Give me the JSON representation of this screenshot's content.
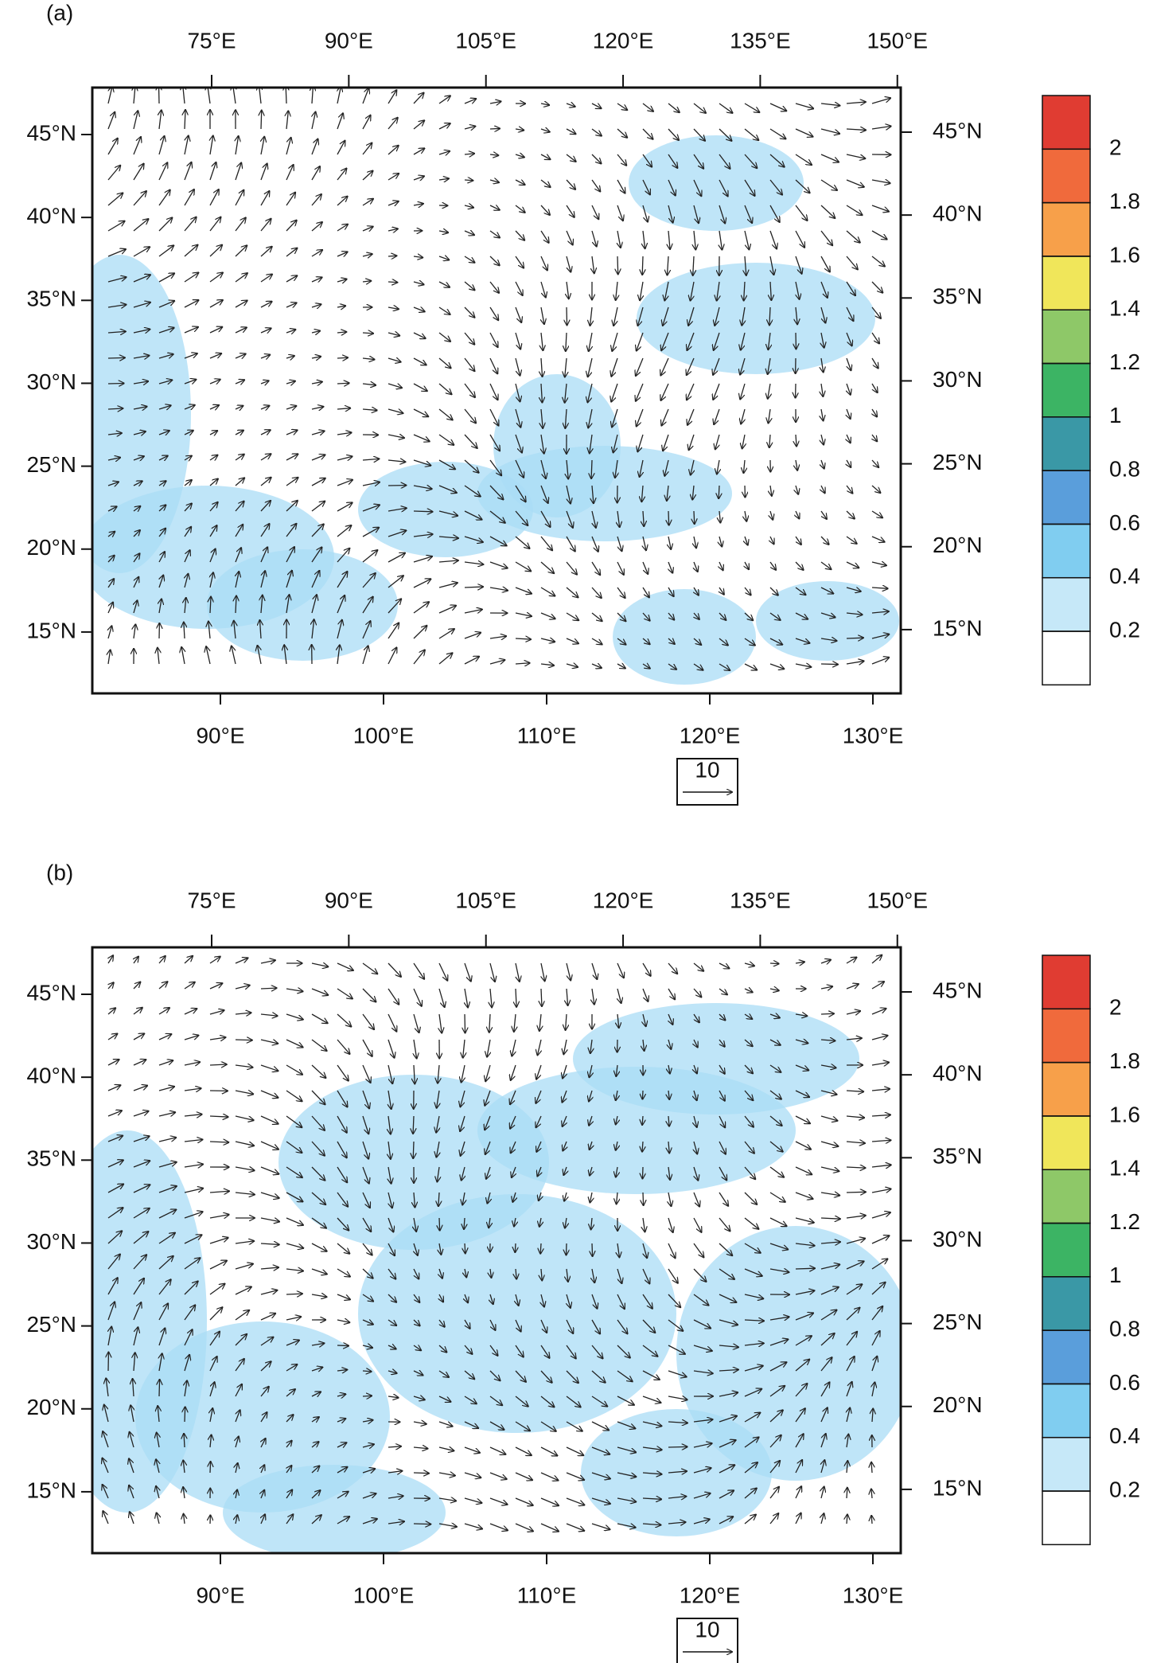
{
  "panels": [
    {
      "label": "(a)",
      "top_lon_ticks": [
        {
          "value": 75,
          "label": "75°E"
        },
        {
          "value": 90,
          "label": "90°E"
        },
        {
          "value": 105,
          "label": "105°E"
        },
        {
          "value": 120,
          "label": "120°E"
        },
        {
          "value": 135,
          "label": "135°E"
        },
        {
          "value": 150,
          "label": "150°E"
        }
      ],
      "bottom_lon_ticks": [
        {
          "value": 90,
          "label": "90°E"
        },
        {
          "value": 100,
          "label": "100°E"
        },
        {
          "value": 110,
          "label": "110°E"
        },
        {
          "value": 120,
          "label": "120°E"
        },
        {
          "value": 130,
          "label": "130°E"
        }
      ],
      "left_lat_ticks": [
        {
          "value": 45,
          "label": "45°N"
        },
        {
          "value": 40,
          "label": "40°N"
        },
        {
          "value": 35,
          "label": "35°N"
        },
        {
          "value": 30,
          "label": "30°N"
        },
        {
          "value": 25,
          "label": "25°N"
        },
        {
          "value": 20,
          "label": "20°N"
        },
        {
          "value": 15,
          "label": "15°N"
        }
      ],
      "right_lat_ticks": [
        {
          "value": 45,
          "label": "45°N"
        },
        {
          "value": 40,
          "label": "40°N"
        },
        {
          "value": 35,
          "label": "35°N"
        },
        {
          "value": 30,
          "label": "30°N"
        },
        {
          "value": 25,
          "label": "25°N"
        },
        {
          "value": 20,
          "label": "20°N"
        },
        {
          "value": 15,
          "label": "15°N"
        }
      ],
      "reference_vector": {
        "value": 10
      },
      "colorbar": {
        "levels": [
          0.2,
          0.4,
          0.6,
          0.8,
          1,
          1.2,
          1.4,
          1.6,
          1.8,
          2
        ],
        "colors": [
          "#ffffff",
          "#c6e8f8",
          "#80cdf0",
          "#5a9edb",
          "#3a98a6",
          "#3cb464",
          "#8ec868",
          "#f0e65a",
          "#f7a04a",
          "#f06a3c",
          "#e03c32"
        ]
      }
    },
    {
      "label": "(b)",
      "top_lon_ticks": [
        {
          "value": 75,
          "label": "75°E"
        },
        {
          "value": 90,
          "label": "90°E"
        },
        {
          "value": 105,
          "label": "105°E"
        },
        {
          "value": 120,
          "label": "120°E"
        },
        {
          "value": 135,
          "label": "135°E"
        },
        {
          "value": 150,
          "label": "150°E"
        }
      ],
      "bottom_lon_ticks": [
        {
          "value": 90,
          "label": "90°E"
        },
        {
          "value": 100,
          "label": "100°E"
        },
        {
          "value": 110,
          "label": "110°E"
        },
        {
          "value": 120,
          "label": "120°E"
        },
        {
          "value": 130,
          "label": "130°E"
        }
      ],
      "left_lat_ticks": [
        {
          "value": 45,
          "label": "45°N"
        },
        {
          "value": 40,
          "label": "40°N"
        },
        {
          "value": 35,
          "label": "35°N"
        },
        {
          "value": 30,
          "label": "30°N"
        },
        {
          "value": 25,
          "label": "25°N"
        },
        {
          "value": 20,
          "label": "20°N"
        },
        {
          "value": 15,
          "label": "15°N"
        }
      ],
      "right_lat_ticks": [
        {
          "value": 45,
          "label": "45°N"
        },
        {
          "value": 40,
          "label": "40°N"
        },
        {
          "value": 35,
          "label": "35°N"
        },
        {
          "value": 30,
          "label": "30°N"
        },
        {
          "value": 25,
          "label": "25°N"
        },
        {
          "value": 20,
          "label": "20°N"
        },
        {
          "value": 15,
          "label": "15°N"
        }
      ],
      "reference_vector": {
        "value": 10
      },
      "colorbar": {
        "levels": [
          0.2,
          0.4,
          0.6,
          0.8,
          1,
          1.2,
          1.4,
          1.6,
          1.8,
          2
        ],
        "colors": [
          "#ffffff",
          "#c6e8f8",
          "#80cdf0",
          "#5a9edb",
          "#3a98a6",
          "#3cb464",
          "#8ec868",
          "#f0e65a",
          "#f7a04a",
          "#f06a3c",
          "#e03c32"
        ]
      }
    }
  ]
}
